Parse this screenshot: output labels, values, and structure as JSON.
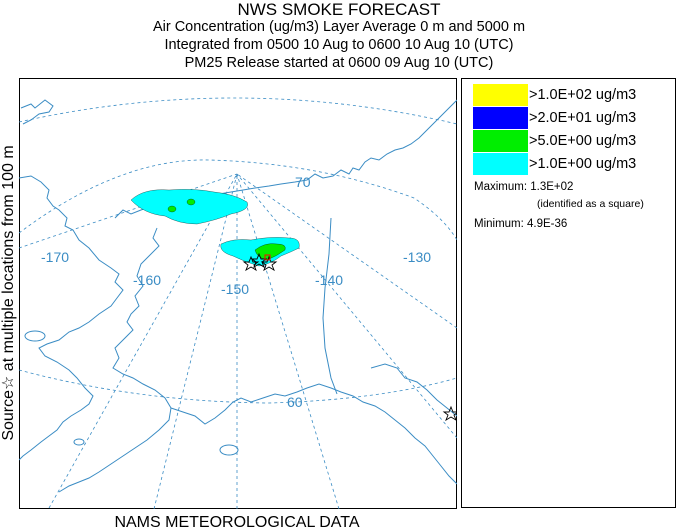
{
  "header": {
    "title": "NWS SMOKE FORECAST",
    "line2": "Air Concentration (ug/m3) Layer Average    0 m and  5000 m",
    "line3": "Integrated from 0500 10 Aug to 0600 10 Aug 10 (UTC)",
    "line4": "PM25 Release started at 0600 09 Aug 10 (UTC)"
  },
  "side_label": "Source☆    at multiple locations    from   100 m",
  "footer": "NAMS METEOROLOGICAL DATA",
  "map": {
    "longitude_labels": [
      "-170",
      "-160",
      "-150",
      "-140",
      "-130"
    ],
    "latitude_labels": [
      "70",
      "60"
    ]
  },
  "legend": {
    "entries": [
      {
        "label": ">1.0E+02 ug/m3",
        "color": "#ffff00"
      },
      {
        "label": ">2.0E+01 ug/m3",
        "color": "#0000ff"
      },
      {
        "label": ">5.0E+00 ug/m3",
        "color": "#00ee00"
      },
      {
        "label": ">1.0E+00 ug/m3",
        "color": "#00ffff"
      }
    ],
    "maximum": "Maximum: 1.3E+02",
    "maximum_note": "(identified as a square)",
    "minimum": "Minimum: 4.9E-36"
  },
  "colors": {
    "coastline": "#3a8cc4",
    "grid": "#3a8cc4",
    "label": "#3a8cc4"
  }
}
